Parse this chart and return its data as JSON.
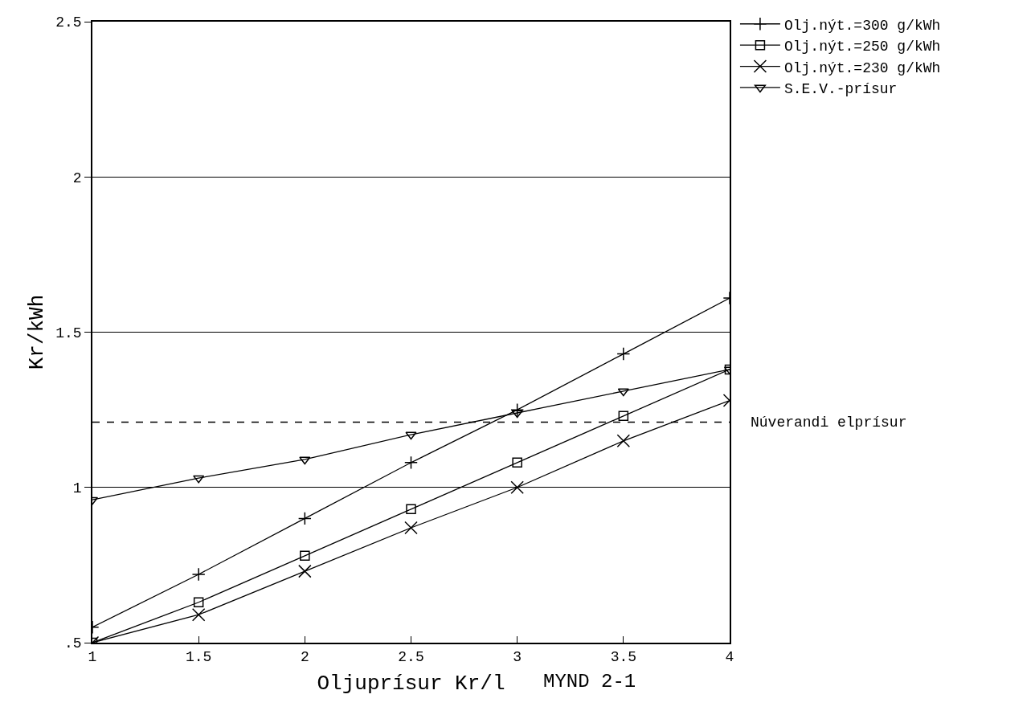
{
  "chart_data": {
    "type": "line",
    "xlabel": "Oljuprísur Kr/l",
    "ylabel": "Kr/kWh",
    "x": [
      1,
      1.5,
      2,
      2.5,
      3,
      3.5,
      4
    ],
    "series": [
      {
        "name": "Olj.nýt.=300 g/kWh",
        "color": "#000000",
        "marker": "cross",
        "values": [
          0.55,
          0.72,
          0.9,
          1.08,
          1.25,
          1.43,
          1.61
        ]
      },
      {
        "name": "Olj.nýt.=250 g/kWh",
        "color": "#000000",
        "marker": "square",
        "values": [
          0.5,
          0.63,
          0.78,
          0.93,
          1.08,
          1.23,
          1.38
        ]
      },
      {
        "name": "Olj.nýt.=230 g/kWh",
        "color": "#000000",
        "marker": "x",
        "values": [
          0.5,
          0.59,
          0.73,
          0.87,
          1.0,
          1.15,
          1.28
        ]
      },
      {
        "name": "S.E.V.-prísur",
        "color": "#000000",
        "marker": "triangle",
        "values": [
          0.96,
          1.03,
          1.09,
          1.17,
          1.24,
          1.31,
          1.38
        ]
      }
    ],
    "xlim": [
      1,
      4
    ],
    "xticks": [
      1,
      1.5,
      2,
      2.5,
      3,
      3.5,
      4
    ],
    "ylim": [
      0.5,
      2.5
    ],
    "yticks": [
      {
        "value": 0.5,
        "label": ".5"
      },
      1,
      1.5,
      2,
      2.5
    ],
    "grid": "y",
    "legend": "top right",
    "line_style": "solid",
    "ref_lines": [
      {
        "axis": "y",
        "value": 1.21,
        "label": "Núverandi elprísur",
        "line_style": "dashed",
        "color": "#000000"
      }
    ],
    "annotations": [
      "MYND 2-1"
    ]
  }
}
